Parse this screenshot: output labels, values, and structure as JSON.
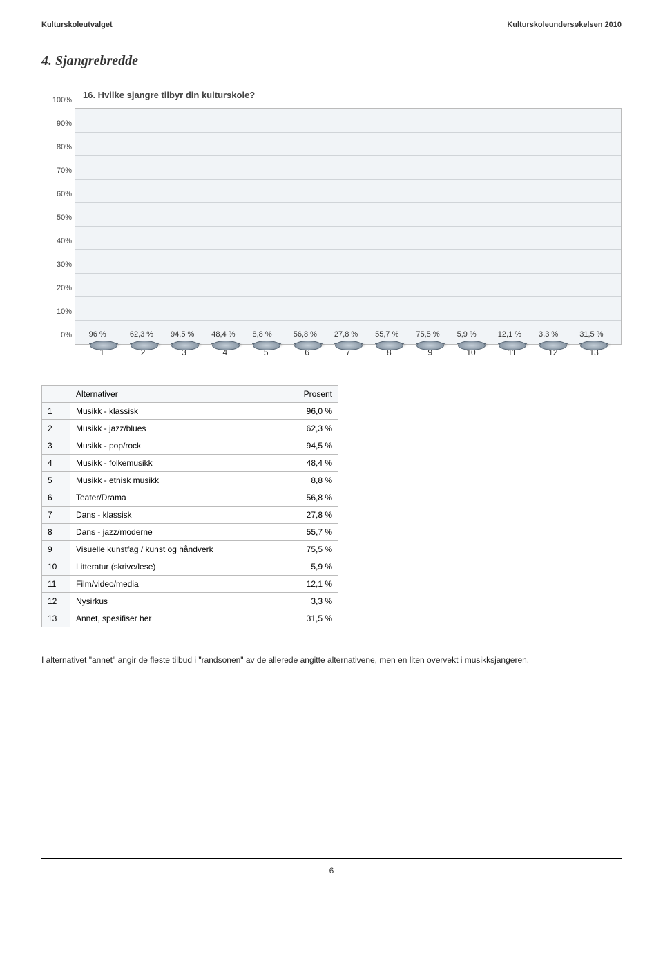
{
  "header": {
    "left": "Kulturskoleutvalget",
    "right": "Kulturskoleundersøkelsen 2010"
  },
  "section_title": "4. Sjangrebredde",
  "chart": {
    "title": "16. Hvilke sjangre tilbyr din kulturskole?",
    "type": "bar",
    "ylim": [
      0,
      100
    ],
    "ytick_step": 10,
    "y_suffix": "%",
    "background_color": "#f1f4f7",
    "grid_color": "#d0d4d8",
    "bar_fill": "#8a98a6",
    "bar_border": "#5a6876",
    "categories": [
      "1",
      "2",
      "3",
      "4",
      "5",
      "6",
      "7",
      "8",
      "9",
      "10",
      "11",
      "12",
      "13"
    ],
    "values": [
      96.0,
      62.3,
      94.5,
      48.4,
      8.8,
      56.8,
      27.8,
      55.7,
      75.5,
      5.9,
      12.1,
      3.3,
      31.5
    ],
    "bar_labels": [
      "96 %",
      "62,3 %",
      "94,5 %",
      "48,4 %",
      "8,8 %",
      "56,8 %",
      "27,8 %",
      "55,7 %",
      "75,5 %",
      "5,9 %",
      "12,1 %",
      "3,3 %",
      "31,5 %"
    ]
  },
  "table": {
    "col_alt": "Alternativer",
    "col_pct": "Prosent",
    "rows": [
      {
        "n": "1",
        "label": "Musikk - klassisk",
        "pct": "96,0 %"
      },
      {
        "n": "2",
        "label": "Musikk - jazz/blues",
        "pct": "62,3 %"
      },
      {
        "n": "3",
        "label": "Musikk - pop/rock",
        "pct": "94,5 %"
      },
      {
        "n": "4",
        "label": "Musikk - folkemusikk",
        "pct": "48,4 %"
      },
      {
        "n": "5",
        "label": "Musikk - etnisk musikk",
        "pct": "8,8 %"
      },
      {
        "n": "6",
        "label": "Teater/Drama",
        "pct": "56,8 %"
      },
      {
        "n": "7",
        "label": "Dans - klassisk",
        "pct": "27,8 %"
      },
      {
        "n": "8",
        "label": "Dans - jazz/moderne",
        "pct": "55,7 %"
      },
      {
        "n": "9",
        "label": "Visuelle kunstfag / kunst og håndverk",
        "pct": "75,5 %"
      },
      {
        "n": "10",
        "label": "Litteratur (skrive/lese)",
        "pct": "5,9 %"
      },
      {
        "n": "11",
        "label": "Film/video/media",
        "pct": "12,1 %"
      },
      {
        "n": "12",
        "label": "Nysirkus",
        "pct": "3,3 %"
      },
      {
        "n": "13",
        "label": "Annet, spesifiser her",
        "pct": "31,5 %"
      }
    ]
  },
  "note": "I alternativet \"annet\" angir de fleste tilbud i \"randsonen\" av de allerede angitte alternativene, men en liten overvekt i musikksjangeren.",
  "page_number": "6"
}
